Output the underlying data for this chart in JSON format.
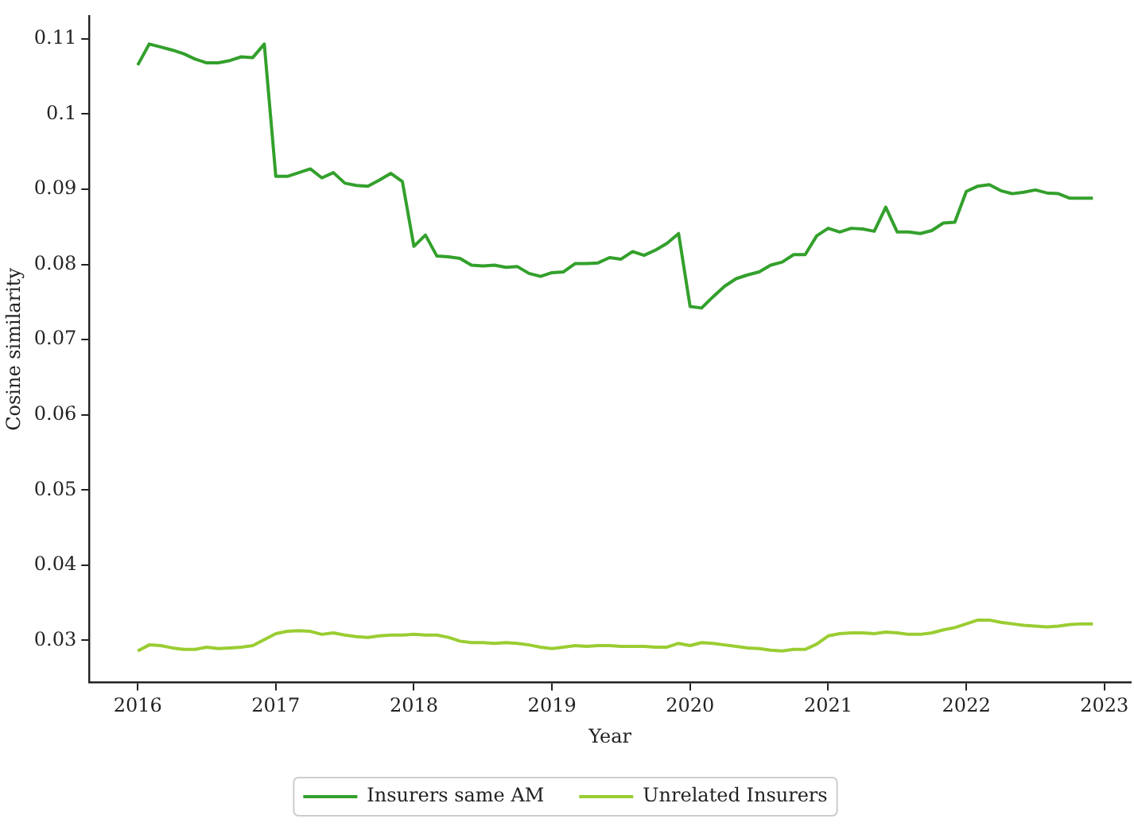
{
  "chart_data": {
    "type": "line",
    "xlabel": "Year",
    "ylabel": "Cosine similarity",
    "x": [
      "2016-01",
      "2016-02",
      "2016-03",
      "2016-04",
      "2016-05",
      "2016-06",
      "2016-07",
      "2016-08",
      "2016-09",
      "2016-10",
      "2016-11",
      "2016-12",
      "2017-01",
      "2017-02",
      "2017-03",
      "2017-04",
      "2017-05",
      "2017-06",
      "2017-07",
      "2017-08",
      "2017-09",
      "2017-10",
      "2017-11",
      "2017-12",
      "2018-01",
      "2018-02",
      "2018-03",
      "2018-04",
      "2018-05",
      "2018-06",
      "2018-07",
      "2018-08",
      "2018-09",
      "2018-10",
      "2018-11",
      "2018-12",
      "2019-01",
      "2019-02",
      "2019-03",
      "2019-04",
      "2019-05",
      "2019-06",
      "2019-07",
      "2019-08",
      "2019-09",
      "2019-10",
      "2019-11",
      "2019-12",
      "2020-01",
      "2020-02",
      "2020-03",
      "2020-04",
      "2020-05",
      "2020-06",
      "2020-07",
      "2020-08",
      "2020-09",
      "2020-10",
      "2020-11",
      "2020-12",
      "2021-01",
      "2021-02",
      "2021-03",
      "2021-04",
      "2021-05",
      "2021-06",
      "2021-07",
      "2021-08",
      "2021-09",
      "2021-10",
      "2021-11",
      "2021-12",
      "2022-01",
      "2022-02",
      "2022-03",
      "2022-04",
      "2022-05",
      "2022-06",
      "2022-07",
      "2022-08",
      "2022-09",
      "2022-10",
      "2022-11",
      "2022-12"
    ],
    "series": [
      {
        "name": "Insurers same AM",
        "color": "#33a02c",
        "values": [
          0.1065,
          0.1093,
          0.1089,
          0.1085,
          0.108,
          0.1073,
          0.1068,
          0.1068,
          0.1071,
          0.1076,
          0.1075,
          0.1093,
          0.0917,
          0.0917,
          0.0922,
          0.0927,
          0.0915,
          0.0922,
          0.0908,
          0.0905,
          0.0904,
          0.0912,
          0.0921,
          0.091,
          0.0824,
          0.0839,
          0.0811,
          0.081,
          0.0808,
          0.0799,
          0.0798,
          0.0799,
          0.0796,
          0.0797,
          0.0788,
          0.0784,
          0.0789,
          0.079,
          0.0801,
          0.0801,
          0.0802,
          0.0809,
          0.0807,
          0.0817,
          0.0812,
          0.0819,
          0.0828,
          0.0841,
          0.0744,
          0.0742,
          0.0757,
          0.0771,
          0.0781,
          0.0786,
          0.079,
          0.0799,
          0.0803,
          0.0813,
          0.0813,
          0.0838,
          0.0848,
          0.0843,
          0.0848,
          0.0847,
          0.0844,
          0.0876,
          0.0843,
          0.0843,
          0.0841,
          0.0845,
          0.0855,
          0.0856,
          0.0897,
          0.0904,
          0.0906,
          0.0898,
          0.0894,
          0.0896,
          0.0899,
          0.0895,
          0.0894,
          0.0888,
          0.0888,
          0.0888
        ]
      },
      {
        "name": "Unrelated Insurers",
        "color": "#9acd32",
        "values": [
          0.0286,
          0.0294,
          0.0293,
          0.029,
          0.0288,
          0.0288,
          0.0291,
          0.0289,
          0.029,
          0.0291,
          0.0293,
          0.0301,
          0.0309,
          0.0312,
          0.0313,
          0.0312,
          0.0308,
          0.031,
          0.0307,
          0.0305,
          0.0304,
          0.0306,
          0.0307,
          0.0307,
          0.0308,
          0.0307,
          0.0307,
          0.0304,
          0.0299,
          0.0297,
          0.0297,
          0.0296,
          0.0297,
          0.0296,
          0.0294,
          0.0291,
          0.0289,
          0.0291,
          0.0293,
          0.0292,
          0.0293,
          0.0293,
          0.0292,
          0.0292,
          0.0292,
          0.0291,
          0.0291,
          0.0296,
          0.0293,
          0.0297,
          0.0296,
          0.0294,
          0.0292,
          0.029,
          0.0289,
          0.0287,
          0.0286,
          0.0288,
          0.0288,
          0.0295,
          0.0306,
          0.0309,
          0.031,
          0.031,
          0.0309,
          0.0311,
          0.031,
          0.0308,
          0.0308,
          0.031,
          0.0314,
          0.0317,
          0.0322,
          0.0327,
          0.0327,
          0.0324,
          0.0322,
          0.032,
          0.0319,
          0.0318,
          0.0319,
          0.0321,
          0.0322,
          0.0322
        ]
      }
    ],
    "xlim": [
      "2015-08-25",
      "2023-03-10"
    ],
    "xticks": [
      "2016",
      "2017",
      "2018",
      "2019",
      "2020",
      "2021",
      "2022",
      "2023"
    ],
    "ylim": [
      0.0244,
      0.113
    ],
    "yticks": [
      0.03,
      0.04,
      0.05,
      0.06,
      0.07,
      0.08,
      0.09,
      0.1,
      0.11
    ],
    "grid": false,
    "legend": "bottom",
    "marker": "none",
    "line_style": "solid"
  }
}
